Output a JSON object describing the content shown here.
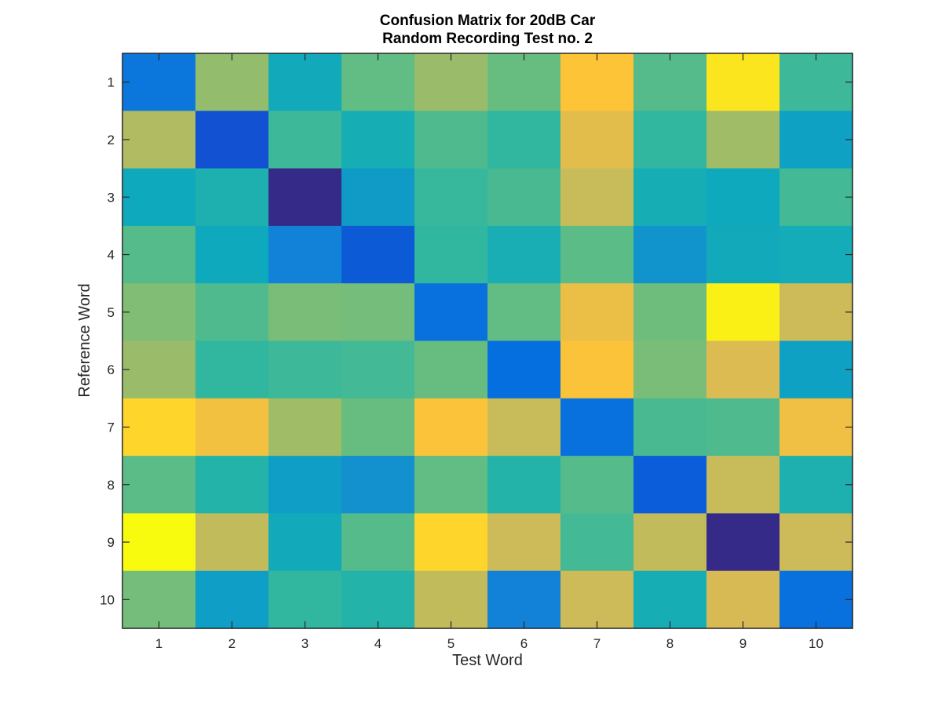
{
  "chart_data": {
    "type": "heatmap",
    "title_lines": [
      "Confusion Matrix for 20dB Car",
      "Random Recording Test no. 2"
    ],
    "xlabel": "Test Word",
    "ylabel": "Reference Word",
    "x_categories": [
      "1",
      "2",
      "3",
      "4",
      "5",
      "6",
      "7",
      "8",
      "9",
      "10"
    ],
    "y_categories": [
      "1",
      "2",
      "3",
      "4",
      "5",
      "6",
      "7",
      "8",
      "9",
      "10"
    ],
    "colormap": "parula",
    "color_range": [
      0,
      1
    ],
    "colorbar": false,
    "grid": false,
    "values": [
      [
        0.24,
        0.68,
        0.42,
        0.6,
        0.69,
        0.61,
        0.9,
        0.58,
        0.96,
        0.54
      ],
      [
        0.73,
        0.11,
        0.54,
        0.44,
        0.57,
        0.52,
        0.83,
        0.52,
        0.7,
        0.38
      ],
      [
        0.41,
        0.47,
        0.0,
        0.36,
        0.53,
        0.56,
        0.77,
        0.44,
        0.41,
        0.55
      ],
      [
        0.58,
        0.41,
        0.28,
        0.14,
        0.52,
        0.45,
        0.59,
        0.34,
        0.42,
        0.43
      ],
      [
        0.65,
        0.57,
        0.64,
        0.63,
        0.22,
        0.6,
        0.85,
        0.62,
        0.98,
        0.78
      ],
      [
        0.69,
        0.52,
        0.54,
        0.55,
        0.61,
        0.21,
        0.89,
        0.64,
        0.81,
        0.38
      ],
      [
        0.93,
        0.87,
        0.7,
        0.61,
        0.89,
        0.77,
        0.22,
        0.56,
        0.57,
        0.86
      ],
      [
        0.59,
        0.49,
        0.37,
        0.33,
        0.6,
        0.49,
        0.58,
        0.15,
        0.77,
        0.47
      ],
      [
        1.0,
        0.76,
        0.42,
        0.58,
        0.93,
        0.78,
        0.55,
        0.76,
        0.0,
        0.78
      ],
      [
        0.63,
        0.37,
        0.52,
        0.49,
        0.76,
        0.28,
        0.78,
        0.44,
        0.8,
        0.22
      ]
    ]
  }
}
